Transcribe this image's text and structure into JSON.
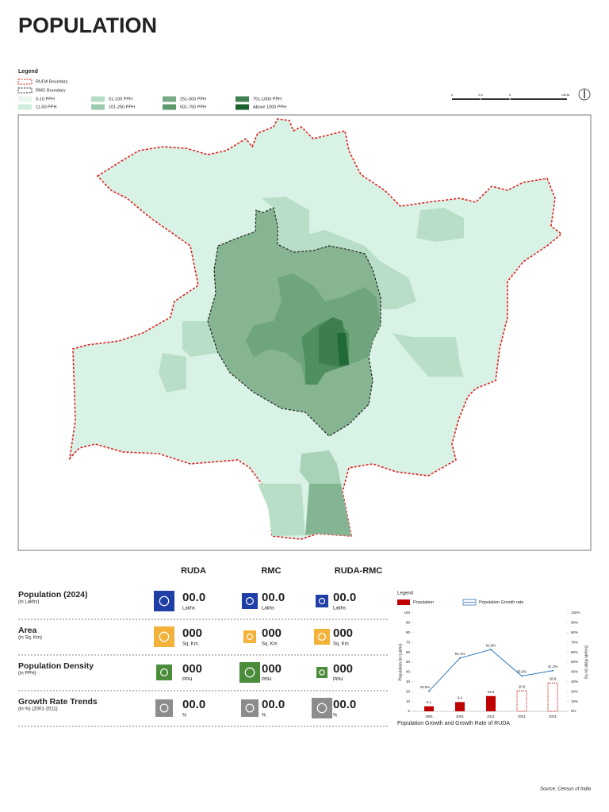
{
  "title": "POPULATION",
  "legend": {
    "title": "Legend",
    "boundaries": [
      {
        "label": "RUDA Boundary",
        "color": "#e02020"
      },
      {
        "label": "RMC Boundary",
        "color": "#222222"
      }
    ],
    "classes": [
      {
        "label": "0-10 PPH",
        "color": "#e8f6ee"
      },
      {
        "label": "11-50 PPH",
        "color": "#cdeedb"
      },
      {
        "label": "51-100 PPH",
        "color": "#b5dcc4"
      },
      {
        "label": "101-250 PPH",
        "color": "#9ccaae"
      },
      {
        "label": "251-500 PPH",
        "color": "#78ab87"
      },
      {
        "label": "501-750 PPH",
        "color": "#5d9a6d"
      },
      {
        "label": "751-1000 PPH",
        "color": "#3f8152"
      },
      {
        "label": "Above 1000 PPH",
        "color": "#1d6330"
      }
    ]
  },
  "scale": [
    "0",
    "2.5",
    "5",
    "10KM"
  ],
  "stats": {
    "columns": [
      {
        "label": "RUDA",
        "color": "#d0202a"
      },
      {
        "label": "RMC",
        "color": "#111111"
      },
      {
        "label": "RUDA-RMC",
        "color": "#e8604a"
      }
    ],
    "rows": [
      {
        "label": "Population (2024)",
        "sub": "(in Lakhs)",
        "icon": "#1f3fa6",
        "values": [
          "00.0",
          "00.0",
          "00.0"
        ],
        "units": [
          "Lakhs",
          "Lakhs",
          "Lakhs"
        ]
      },
      {
        "label": "Area",
        "sub": "(in Sq. Km)",
        "icon": "#f3b23c",
        "values": [
          "000",
          "000",
          "000"
        ],
        "units": [
          "Sq. Km.",
          "Sq. Km",
          "Sq. Km"
        ]
      },
      {
        "label": "Population Density",
        "sub": "(in PPH)",
        "icon": "#4b8c3a",
        "values": [
          "000",
          "000",
          "000"
        ],
        "units": [
          "PPH",
          "PPH",
          "PPH"
        ]
      },
      {
        "label": "Growth Rate Trends",
        "sub": "(in %) (2001-2011)",
        "icon": "#8c8c8c",
        "values": [
          "00.0",
          "00.0",
          "00.0"
        ],
        "units": [
          "%",
          "%",
          "%"
        ]
      }
    ]
  },
  "chart_data": {
    "type": "bar",
    "legend_title": "Legend",
    "caption": "Population Growth and Growth Rate of RUDA",
    "y_label": "Population (in Lakhs)",
    "y2_label": "Growth Rate (in %)",
    "categories": [
      "1991",
      "2001",
      "2011",
      "2021",
      "2031"
    ],
    "series": [
      {
        "name": "Population",
        "color": "#c00000",
        "values": [
          5.1,
          9.4,
          15.5,
          20.8,
          28.8
        ],
        "outline_only": [
          false,
          false,
          false,
          true,
          true
        ]
      },
      {
        "name": "Population Growth rate",
        "type": "line",
        "axis": "y2",
        "color": "#2e75b6",
        "values": [
          20.5,
          54.1,
          62.8,
          35.9,
          41.3
        ],
        "value_labels": [
          "20.5%",
          "54.1%",
          "62.8%",
          "35.9%",
          "41.3%"
        ]
      }
    ],
    "ylim": [
      0,
      100
    ],
    "yticks": [
      0,
      10,
      20,
      30,
      40,
      50,
      60,
      70,
      80,
      90,
      100
    ],
    "y2lim": [
      0,
      100
    ],
    "y2ticks": [
      {
        "value": 0,
        "label": "0%"
      },
      {
        "value": 10,
        "label": "10%"
      },
      {
        "value": 20,
        "label": "20%"
      },
      {
        "value": 30,
        "label": "30%"
      },
      {
        "value": 40,
        "label": "40%"
      },
      {
        "value": 50,
        "label": "50%"
      },
      {
        "value": 60,
        "label": "60%"
      },
      {
        "value": 70,
        "label": "70%"
      },
      {
        "value": 80,
        "label": "80%"
      },
      {
        "value": 90,
        "label": "90%"
      },
      {
        "value": 100,
        "label": "100%"
      }
    ]
  },
  "source": "Source: Census of India"
}
